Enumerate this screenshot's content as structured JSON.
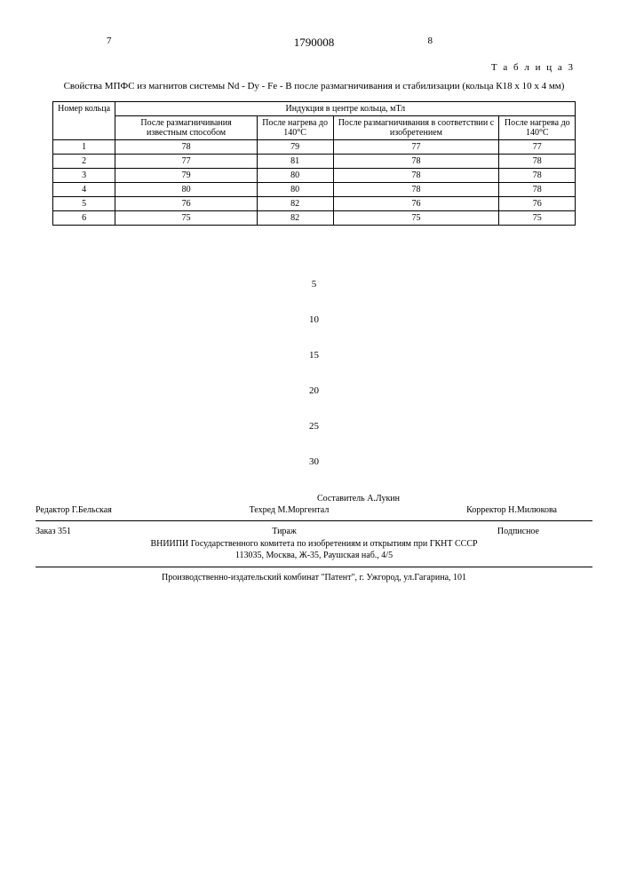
{
  "page": {
    "left_num": "7",
    "center_num": "1790008",
    "right_num": "8",
    "table_label": "Т а б л и ц а 3",
    "caption": "Свойства МПФС из магнитов системы Nd - Dy - Fe - B после размагничивания и стабилизации (кольца К18 х 10 х 4 мм)"
  },
  "table": {
    "col_ring": "Номер кольца",
    "header_span": "Индукция в центре кольца, мТл",
    "col1": "После размагничивания известным способом",
    "col2": "После нагрева до 140°С",
    "col3": "После размагничивания в соответствии с изобретением",
    "col4": "После нагрева до 140°С",
    "rows": [
      {
        "n": "1",
        "a": "78",
        "b": "79",
        "c": "77",
        "d": "77"
      },
      {
        "n": "2",
        "a": "77",
        "b": "81",
        "c": "78",
        "d": "78"
      },
      {
        "n": "3",
        "a": "79",
        "b": "80",
        "c": "78",
        "d": "78"
      },
      {
        "n": "4",
        "a": "80",
        "b": "80",
        "c": "78",
        "d": "78"
      },
      {
        "n": "5",
        "a": "76",
        "b": "82",
        "c": "76",
        "d": "76"
      },
      {
        "n": "6",
        "a": "75",
        "b": "82",
        "c": "75",
        "d": "75"
      }
    ]
  },
  "line_numbers": {
    "n5": "5",
    "n10": "10",
    "n15": "15",
    "n20": "20",
    "n25": "25",
    "n30": "30"
  },
  "credits": {
    "compiler": "Составитель А.Лукин",
    "editor": "Редактор Г.Бельская",
    "techred": "Техред М.Моргентал",
    "corrector": "Корректор Н.Милюкова",
    "order": "Заказ 351",
    "tirazh": "Тираж",
    "podpisnoe": "Подписное",
    "institute_line1": "ВНИИПИ Государственного комитета по изобретениям и открытиям при ГКНТ СССР",
    "institute_line2": "113035, Москва, Ж-35, Раушская наб., 4/5",
    "publisher": "Производственно-издательский комбинат \"Патент\", г. Ужгород, ул.Гагарина, 101"
  }
}
